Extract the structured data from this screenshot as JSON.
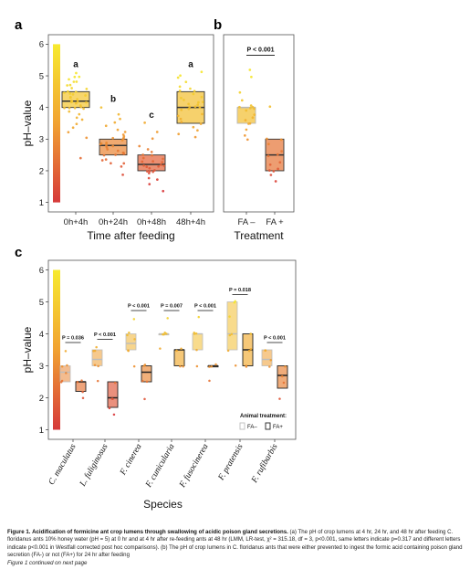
{
  "colors": {
    "high_pH": "#f5e52c",
    "mid_pH": "#f0a030",
    "low_pH": "#d8363a",
    "panel_border": "#555555"
  },
  "chart_data": [
    {
      "panel": "a",
      "type": "box",
      "ylabel": "pH–value",
      "xlabel": "Time after feeding",
      "ylim": [
        0.7,
        6.3
      ],
      "yticks": [
        1,
        2,
        3,
        4,
        5,
        6
      ],
      "categories": [
        "0h+4h",
        "0h+24h",
        "0h+48h",
        "48h+4h"
      ],
      "boxes": [
        {
          "q1": 4.0,
          "median": 4.2,
          "q3": 4.5
        },
        {
          "q1": 2.5,
          "median": 2.8,
          "q3": 3.0
        },
        {
          "q1": 2.0,
          "median": 2.2,
          "q3": 2.5
        },
        {
          "q1": 3.5,
          "median": 4.0,
          "q3": 4.5
        }
      ],
      "points": [
        [
          3.0,
          3.2,
          3.5,
          3.6,
          3.7,
          3.8,
          3.9,
          4.0,
          4.0,
          4.0,
          4.0,
          4.1,
          4.1,
          4.2,
          4.2,
          4.2,
          4.2,
          4.3,
          4.3,
          4.3,
          4.4,
          4.4,
          4.5,
          4.5,
          4.5,
          4.6,
          4.6,
          4.7,
          4.7,
          4.8,
          4.8,
          4.9,
          5.0,
          5.0,
          5.1,
          2.4,
          3.4,
          4.0,
          4.2,
          4.4
        ],
        [
          1.9,
          2.1,
          2.2,
          2.3,
          2.4,
          2.5,
          2.5,
          2.5,
          2.6,
          2.6,
          2.7,
          2.7,
          2.8,
          2.8,
          2.8,
          2.9,
          2.9,
          3.0,
          3.0,
          3.0,
          3.1,
          3.1,
          3.2,
          3.3,
          3.4,
          3.5,
          3.6,
          3.8,
          4.0,
          2.2,
          2.6,
          2.9,
          3.0
        ],
        [
          1.4,
          1.6,
          1.7,
          1.8,
          1.9,
          2.0,
          2.0,
          2.0,
          2.1,
          2.1,
          2.2,
          2.2,
          2.2,
          2.3,
          2.3,
          2.4,
          2.4,
          2.5,
          2.5,
          2.6,
          2.7,
          2.8,
          3.0,
          3.2,
          3.5,
          2.0,
          2.1,
          2.3
        ],
        [
          3.1,
          3.2,
          3.4,
          3.5,
          3.5,
          3.6,
          3.7,
          3.8,
          3.9,
          4.0,
          4.0,
          4.0,
          4.1,
          4.1,
          4.2,
          4.2,
          4.3,
          4.3,
          4.4,
          4.5,
          4.5,
          4.6,
          4.7,
          4.8,
          4.9,
          5.0,
          5.1,
          3.3,
          4.0,
          4.2
        ]
      ],
      "significance": [
        "a",
        "b",
        "c",
        "a"
      ]
    },
    {
      "panel": "b",
      "type": "box",
      "xlabel": "Treatment",
      "ylim": [
        0.7,
        6.3
      ],
      "categories": [
        "FA –",
        "FA +"
      ],
      "boxes": [
        {
          "q1": 3.5,
          "median": 4.0,
          "q3": 4.0
        },
        {
          "q1": 2.0,
          "median": 2.5,
          "q3": 3.0
        }
      ],
      "points": [
        [
          3.0,
          3.1,
          3.3,
          3.5,
          3.5,
          3.7,
          3.8,
          3.9,
          4.0,
          4.0,
          4.0,
          4.0,
          4.1,
          4.2,
          4.5,
          5.0,
          5.2,
          3.6
        ],
        [
          1.7,
          1.9,
          2.0,
          2.0,
          2.2,
          2.3,
          2.5,
          2.5,
          2.6,
          2.8,
          3.0,
          3.0,
          4.0,
          2.1
        ]
      ],
      "comparison_label": "P < 0.001"
    },
    {
      "panel": "c",
      "type": "box",
      "ylabel": "pH–value",
      "xlabel": "Species",
      "ylim": [
        0.7,
        6.3
      ],
      "yticks": [
        1,
        2,
        3,
        4,
        5,
        6
      ],
      "categories": [
        "C. maculatus",
        "L. fuliginosus",
        "F. cinerea",
        "F. cunicularia",
        "F. fusocinerea",
        "F. pratensis",
        "F. rufibarbis"
      ],
      "minus": [
        {
          "q1": 2.5,
          "median": 2.8,
          "q3": 3.0,
          "points": [
            2.5,
            2.5,
            2.8,
            3.0,
            3.0,
            3.5
          ]
        },
        {
          "q1": 3.0,
          "median": 3.2,
          "q3": 3.5,
          "points": [
            2.5,
            3.0,
            3.0,
            3.5,
            3.5,
            3.6
          ]
        },
        {
          "q1": 3.5,
          "median": 3.7,
          "q3": 4.0,
          "points": [
            3.0,
            3.5,
            3.5,
            3.8,
            4.0,
            4.0,
            4.5
          ]
        },
        {
          "q1": 4.0,
          "median": 4.0,
          "q3": 4.0,
          "points": [
            3.5,
            4.0,
            4.0,
            4.0,
            4.0,
            4.5
          ]
        },
        {
          "q1": 3.5,
          "median": 4.0,
          "q3": 4.0,
          "points": [
            3.0,
            3.5,
            4.0,
            4.0,
            4.0,
            4.5
          ]
        },
        {
          "q1": 3.5,
          "median": 4.0,
          "q3": 5.0,
          "points": [
            3.0,
            3.5,
            4.0,
            4.0,
            4.5,
            5.0,
            5.0
          ]
        },
        {
          "q1": 3.0,
          "median": 3.2,
          "q3": 3.5,
          "points": [
            3.0,
            3.2,
            3.5,
            3.5
          ]
        }
      ],
      "plus": [
        {
          "q1": 2.2,
          "median": 2.5,
          "q3": 2.5,
          "points": [
            2.0,
            2.2,
            2.5,
            2.5
          ]
        },
        {
          "q1": 1.7,
          "median": 2.0,
          "q3": 2.5,
          "points": [
            1.5,
            1.7,
            2.0,
            2.0,
            2.5
          ]
        },
        {
          "q1": 2.5,
          "median": 2.8,
          "q3": 3.0,
          "points": [
            2.0,
            2.5,
            2.5,
            3.0,
            3.0
          ]
        },
        {
          "q1": 3.0,
          "median": 3.5,
          "q3": 3.5,
          "points": [
            3.0,
            3.0,
            3.5,
            3.5
          ]
        },
        {
          "q1": 3.0,
          "median": 3.0,
          "q3": 3.0,
          "points": [
            2.5,
            3.0,
            3.0,
            3.0
          ]
        },
        {
          "q1": 3.0,
          "median": 3.5,
          "q3": 4.0,
          "points": [
            3.0,
            3.0,
            3.5,
            3.5,
            4.0
          ]
        },
        {
          "q1": 2.3,
          "median": 2.7,
          "q3": 3.0,
          "points": [
            2.0,
            2.5,
            2.7,
            3.0
          ]
        }
      ],
      "p_values": [
        "P = 0.036",
        "P < 0.001",
        "P < 0.001",
        "P = 0.007",
        "P < 0.001",
        "P = 0.018",
        "P < 0.001"
      ],
      "legend_title": "Animal treatment:",
      "legend": [
        "FA–",
        "FA+"
      ]
    }
  ],
  "panel_letters": [
    "a",
    "b",
    "c"
  ],
  "caption": {
    "label": "Figure 1.",
    "title": "Acidification of formicine ant crop lumens through swallowing of acidic poison gland secretions.",
    "text_a": "(a) The pH of crop lumens at 4 hr, 24 hr, and 48 hr after feeding C. floridanus ants 10% honey water (pH = 5) at 0 hr and at 4 hr after re-feeding ants at 48 hr (LMM, LR-test, χ² = 315.18, df = 3, p<0.001, same letters indicate p=0.317 and different letters indicate p<0.001 in Westfall corrected post hoc comparisons).",
    "text_b": "(b) The pH of crop lumens in C. floridanus ants that were either prevented to ingest the formic acid containing poison gland secretion (FA-) or not (FA+) for 24 hr after feeding",
    "continued": "Figure 1 continued on next page"
  }
}
